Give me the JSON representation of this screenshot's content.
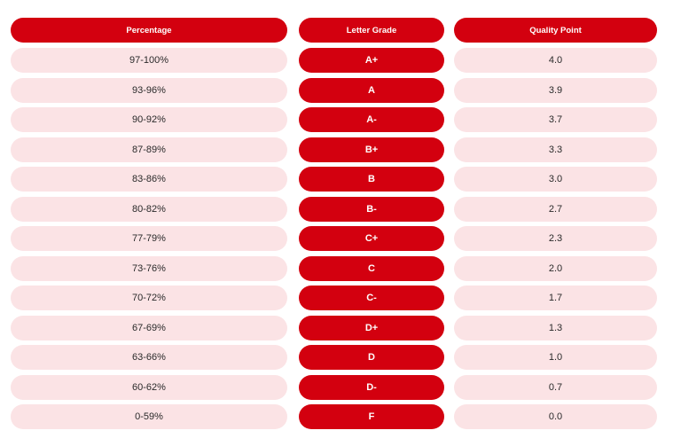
{
  "headers": {
    "percentage": "Percentage",
    "letter_grade": "Letter Grade",
    "quality_point": "Quality Point"
  },
  "rows": [
    {
      "percentage": "97-100%",
      "grade": "A+",
      "quality_point": "4.0"
    },
    {
      "percentage": "93-96%",
      "grade": "A",
      "quality_point": "3.9"
    },
    {
      "percentage": "90-92%",
      "grade": "A-",
      "quality_point": "3.7"
    },
    {
      "percentage": "87-89%",
      "grade": "B+",
      "quality_point": "3.3"
    },
    {
      "percentage": "83-86%",
      "grade": "B",
      "quality_point": "3.0"
    },
    {
      "percentage": "80-82%",
      "grade": "B-",
      "quality_point": "2.7"
    },
    {
      "percentage": "77-79%",
      "grade": "C+",
      "quality_point": "2.3"
    },
    {
      "percentage": "73-76%",
      "grade": "C",
      "quality_point": "2.0"
    },
    {
      "percentage": "70-72%",
      "grade": "C-",
      "quality_point": "1.7"
    },
    {
      "percentage": "67-69%",
      "grade": "D+",
      "quality_point": "1.3"
    },
    {
      "percentage": "63-66%",
      "grade": "D",
      "quality_point": "1.0"
    },
    {
      "percentage": "60-62%",
      "grade": "D-",
      "quality_point": "0.7"
    },
    {
      "percentage": "0-59%",
      "grade": "F",
      "quality_point": "0.0"
    }
  ],
  "colors": {
    "accent": "#d3000f",
    "row_light": "#fbe3e5",
    "text_dark": "#2a2a2a"
  }
}
